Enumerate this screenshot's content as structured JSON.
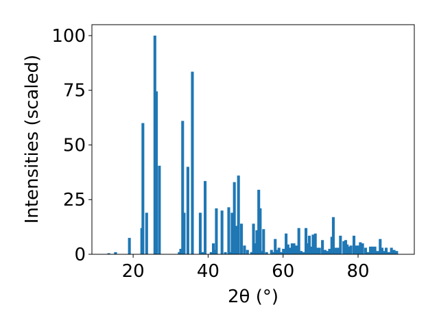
{
  "chart_data": {
    "type": "bar",
    "xlabel": "2θ (°)",
    "ylabel": "Intensities (scaled)",
    "xlim": [
      9,
      95
    ],
    "ylim": [
      0,
      105
    ],
    "xticks": [
      20,
      40,
      60,
      80
    ],
    "yticks": [
      0,
      25,
      50,
      75,
      100
    ],
    "grid": false,
    "bar_color": "#1f77b4",
    "bar_width": 0.75,
    "x": [
      13.5,
      15.3,
      19.0,
      22.3,
      22.6,
      23.6,
      25.8,
      26.2,
      27.0,
      32.3,
      32.7,
      33.2,
      33.6,
      34.6,
      35.8,
      37.9,
      38.6,
      39.2,
      40.8,
      41.4,
      41.9,
      42.2,
      43.7,
      44.6,
      45.5,
      45.9,
      46.4,
      47.0,
      47.5,
      48.1,
      48.9,
      49.7,
      50.5,
      51.6,
      52.1,
      52.6,
      53.0,
      53.5,
      53.9,
      54.2,
      54.8,
      55.6,
      56.9,
      57.4,
      57.9,
      58.4,
      58.9,
      59.4,
      60.1,
      60.8,
      61.3,
      61.8,
      62.4,
      62.9,
      63.6,
      64.2,
      64.8,
      65.5,
      66.1,
      66.5,
      67.0,
      67.5,
      68.0,
      68.6,
      69.1,
      69.7,
      70.5,
      71.2,
      71.8,
      72.4,
      73.0,
      73.4,
      73.9,
      74.6,
      75.3,
      76.2,
      76.7,
      77.1,
      77.6,
      78.1,
      78.9,
      79.5,
      80.0,
      80.6,
      81.2,
      82.0,
      82.6,
      83.3,
      83.8,
      84.5,
      85.2,
      85.9,
      86.4,
      86.9,
      87.5,
      88.2,
      88.9,
      89.6,
      90.3
    ],
    "values": [
      0.5,
      1.0,
      7.5,
      12.0,
      60.0,
      19.0,
      100.0,
      74.5,
      40.5,
      1.0,
      2.5,
      61.0,
      19.0,
      40.0,
      83.5,
      19.0,
      1.0,
      33.5,
      1.0,
      5.0,
      2.0,
      21.0,
      20.0,
      1.0,
      21.5,
      1.0,
      19.0,
      33.0,
      13.0,
      36.0,
      14.0,
      4.0,
      2.0,
      1.0,
      14.0,
      5.0,
      11.0,
      29.5,
      21.0,
      1.5,
      11.5,
      1.0,
      2.0,
      1.0,
      7.0,
      2.0,
      3.0,
      1.0,
      2.5,
      9.5,
      4.5,
      3.0,
      5.0,
      5.0,
      4.0,
      12.0,
      1.5,
      1.0,
      12.0,
      5.0,
      8.5,
      3.5,
      9.0,
      9.5,
      3.0,
      3.0,
      6.5,
      2.0,
      1.5,
      2.5,
      8.0,
      17.0,
      3.0,
      3.0,
      8.5,
      6.0,
      6.5,
      4.5,
      3.5,
      4.0,
      8.5,
      4.0,
      4.0,
      5.5,
      5.0,
      3.0,
      1.0,
      3.5,
      3.5,
      3.5,
      1.5,
      7.0,
      3.0,
      1.5,
      3.0,
      1.0,
      3.0,
      2.0,
      1.5
    ]
  }
}
